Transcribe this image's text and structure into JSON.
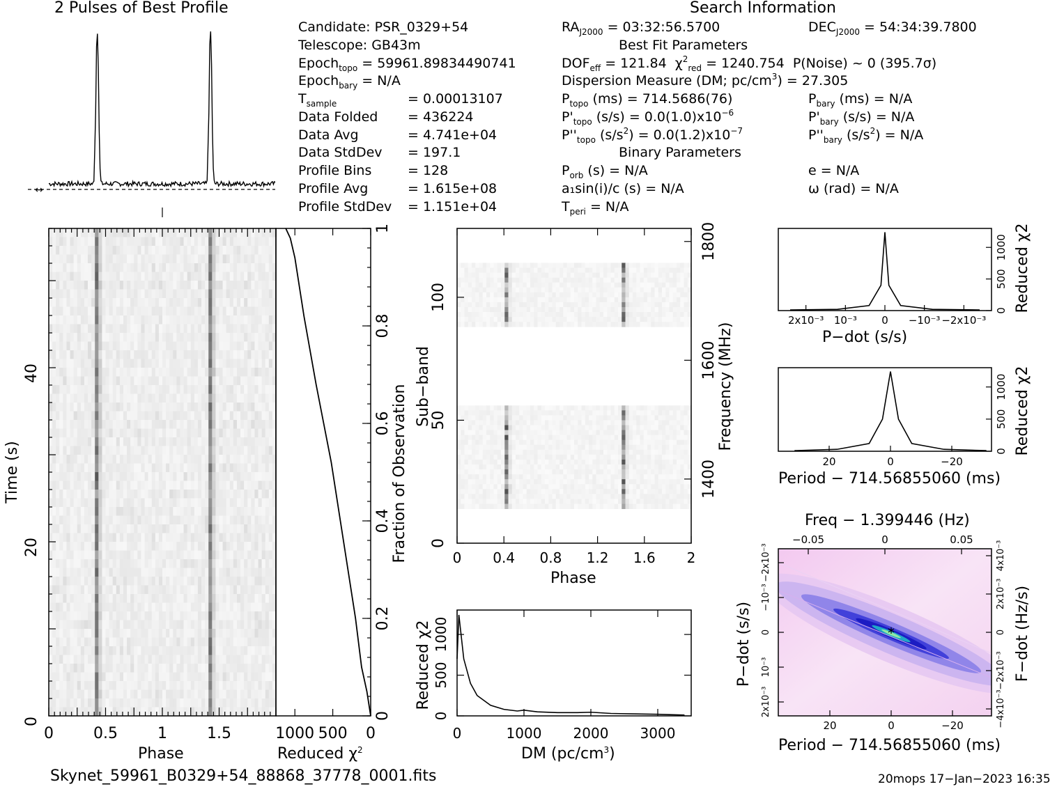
{
  "header": {
    "profile_title": "2 Pulses of Best Profile",
    "search_title": "Search Information",
    "best_fit_title": "Best Fit Parameters",
    "binary_title": "Binary Parameters"
  },
  "info_left": {
    "candidate": "Candidate:  PSR_0329+54",
    "telescope": "Telescope:  GB43m",
    "epoch_topo": "= 59961.89834490741",
    "epoch_bary": "= N/A",
    "rows": [
      {
        "label": "",
        "value": "=   0.00013107"
      },
      {
        "label": "Data Folded",
        "value": "=   436224"
      },
      {
        "label": "Data Avg",
        "value": "=   4.741e+04"
      },
      {
        "label": "Data StdDev",
        "value": "=   197.1"
      },
      {
        "label": "Profile Bins",
        "value": "=   128"
      },
      {
        "label": "Profile Avg",
        "value": "=   1.615e+08"
      },
      {
        "label": "Profile StdDev",
        "value": "=   1.151e+04"
      }
    ]
  },
  "info_mid": {
    "ra": "= 03:32:56.5700",
    "dof": "= 121.84",
    "chi2": "= 1240.754",
    "pnoise": "P(Noise) ~ 0   (395.7σ)",
    "dm": "Dispersion Measure (DM; pc/cm",
    "dm_value": ") = 27.305",
    "ptopo": "(ms) =  714.5686(76)",
    "pdot_topo": "(s/s) = 0.0(1.0)x10",
    "pdot_exp": "−6",
    "pddot_topo": ") = 0.0(1.2)x10",
    "pddot_exp": "−7",
    "porb": "(s) = N/A",
    "a1sini": "a₁sin(i)/c (s) = N/A",
    "tperi": "= N/A"
  },
  "info_right": {
    "dec": "= 54:34:39.7800",
    "pbary": "(ms) = N/A",
    "pdot_bary": "(s/s) = N/A",
    "pddot_bary": ") = N/A",
    "e": "e = N/A",
    "omega": "ω (rad) = N/A"
  },
  "footer": {
    "filename": "Skynet_59961_B0329+54_88868_37778_0001.fits",
    "stamp": "20mops 17−Jan−2023 16:35"
  },
  "axes": {
    "time_ylabel": "Time (s)",
    "phase_xlabel": "Phase",
    "redchi_xlabel": "Reduced χ",
    "fraction_ylabel": "Fraction of Observation",
    "subband_ylabel": "Sub−band",
    "freq_ylabel": "Frequency (MHz)",
    "dm_xlabel": "DM (pc/cm",
    "redchi_ylabel": "Reduced χ",
    "pdot_xlabel": "P−dot (s/s)",
    "period_xlabel": "Period − 714.56855060 (ms)",
    "freq_top_label": "Freq − 1.399446 (Hz)",
    "pdot_ylabel": "P−dot (s/s)",
    "fdot_ylabel": "F−dot (Hz/s)"
  },
  "chart_data": [
    {
      "type": "line",
      "name": "profile",
      "x": [
        0,
        0.4,
        0.43,
        0.46,
        1.0,
        1.4,
        1.43,
        1.46,
        2.0
      ],
      "y": [
        0.03,
        0.05,
        1.0,
        0.05,
        0.03,
        0.05,
        1.0,
        0.05,
        0.03
      ]
    },
    {
      "type": "heatmap",
      "name": "time-phase",
      "xlim": [
        0,
        2
      ],
      "ylim": [
        0,
        56
      ],
      "xticks": [
        "0",
        "0.5",
        "1",
        "1.5"
      ],
      "yticks": [
        "0",
        "20",
        "40"
      ],
      "pulse_phases": [
        0.43,
        1.43
      ]
    },
    {
      "type": "line",
      "name": "reduced-chi2-vs-time",
      "xticks": [
        "1000",
        "500",
        "0"
      ],
      "yticks": [
        "0",
        "0.2",
        "0.4",
        "0.6",
        "0.8",
        "1"
      ],
      "x": [
        0,
        50,
        120,
        200,
        300,
        380,
        450,
        520,
        620,
        720,
        800,
        880,
        940,
        1000,
        1060,
        1120
      ],
      "y": [
        0,
        0.05,
        0.1,
        0.2,
        0.3,
        0.38,
        0.45,
        0.52,
        0.6,
        0.68,
        0.75,
        0.82,
        0.88,
        0.94,
        0.98,
        1.0
      ]
    },
    {
      "type": "heatmap",
      "name": "subband-phase",
      "xlim": [
        0,
        2
      ],
      "ylim": [
        0,
        128
      ],
      "xticks": [
        "0",
        "0.4",
        "0.8",
        "1.2",
        "1.6",
        "2"
      ],
      "yticks": [
        "0",
        "50",
        "100"
      ],
      "freq_ticks": [
        "1400",
        "1600",
        "1800"
      ]
    },
    {
      "type": "line",
      "name": "dm-curve",
      "xticks": [
        "0",
        "1000",
        "2000",
        "3000"
      ],
      "yticks": [
        "0",
        "500",
        "1000"
      ],
      "x": [
        0,
        27,
        100,
        200,
        300,
        500,
        700,
        900,
        1000,
        1200,
        1500,
        1800,
        2000,
        2300,
        2600,
        3000,
        3400
      ],
      "y": [
        700,
        1240,
        700,
        400,
        250,
        130,
        80,
        60,
        70,
        50,
        40,
        40,
        45,
        30,
        25,
        20,
        10
      ]
    },
    {
      "type": "line",
      "name": "pdot-curve",
      "xticks": [
        "2x10⁻³",
        "10⁻³",
        "0",
        "−10⁻³",
        "−2x10⁻³"
      ],
      "yticks": [
        "0",
        "500",
        "1000"
      ],
      "x": [
        -0.0024,
        -0.0012,
        -0.0004,
        -0.0001,
        0,
        0.0001,
        0.0004,
        0.0012,
        0.0024
      ],
      "y": [
        10,
        20,
        80,
        400,
        1240,
        400,
        80,
        20,
        10
      ]
    },
    {
      "type": "line",
      "name": "period-curve",
      "xticks": [
        "20",
        "0",
        "−20"
      ],
      "yticks": [
        "0",
        "500",
        "1000"
      ],
      "x": [
        -36,
        -20,
        -8,
        -3,
        0,
        3,
        8,
        20,
        36
      ],
      "y": [
        10,
        30,
        120,
        500,
        1240,
        500,
        120,
        30,
        10
      ]
    },
    {
      "type": "heatmap",
      "name": "period-pdot",
      "xticks": [
        "20",
        "0",
        "−20"
      ],
      "top_xticks": [
        "−0.05",
        "0",
        "0.05"
      ],
      "yticks": [
        "2x10⁻³",
        "10⁻³",
        "0",
        "−10⁻³",
        "−2x10⁻³"
      ],
      "right_yticks": [
        "−4x10⁻³",
        "−2x10⁻³",
        "0",
        "2x10⁻³",
        "4x10⁻³"
      ]
    }
  ]
}
